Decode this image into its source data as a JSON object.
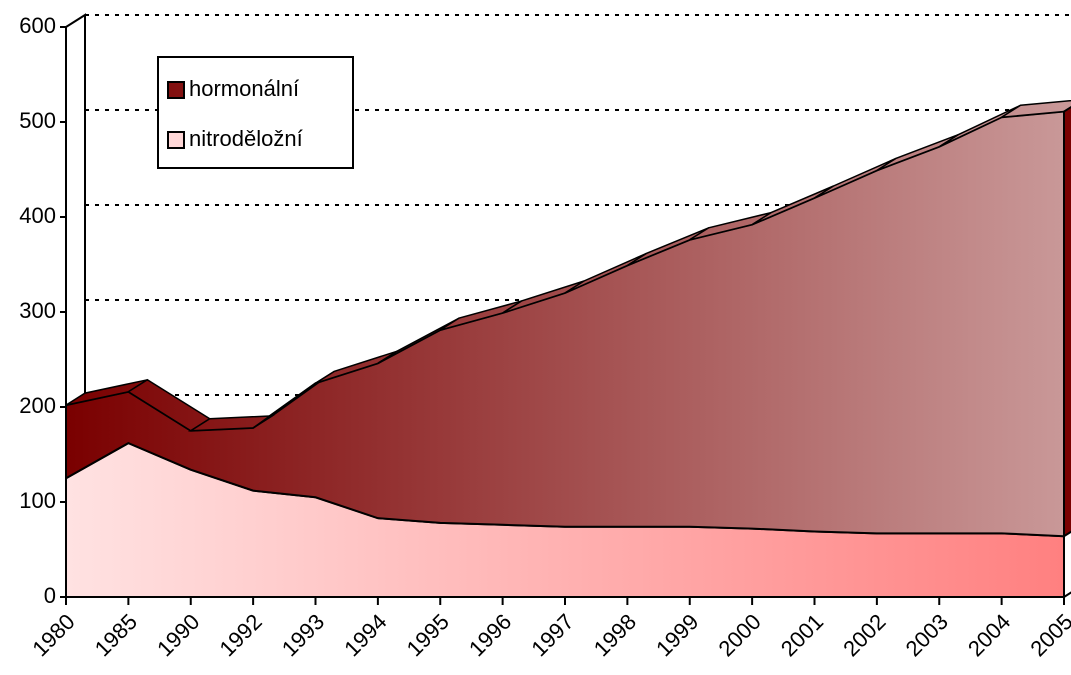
{
  "chart_data": {
    "type": "area",
    "categories": [
      "1980",
      "1985",
      "1990",
      "1992",
      "1993",
      "1994",
      "1995",
      "1996",
      "1997",
      "1998",
      "1999",
      "2000",
      "2001",
      "2002",
      "2003",
      "2004",
      "2005"
    ],
    "series": [
      {
        "name": "hormonální",
        "color": [
          "#7a0000",
          "#c99898"
        ],
        "values": [
          77,
          54,
          41,
          66,
          120,
          163,
          203,
          223,
          246,
          275,
          302,
          320,
          351,
          382,
          407,
          438,
          447
        ]
      },
      {
        "name": "nitroděložní",
        "color": [
          "#ffe2e2",
          "#ff8080"
        ],
        "values": [
          125,
          162,
          134,
          112,
          105,
          83,
          78,
          76,
          74,
          74,
          74,
          72,
          69,
          67,
          67,
          67,
          64
        ]
      }
    ],
    "stacked": true,
    "ylim": [
      0,
      600
    ],
    "yticks": [
      0,
      100,
      200,
      300,
      400,
      500,
      600
    ],
    "grid": true,
    "legend": "top-left"
  }
}
